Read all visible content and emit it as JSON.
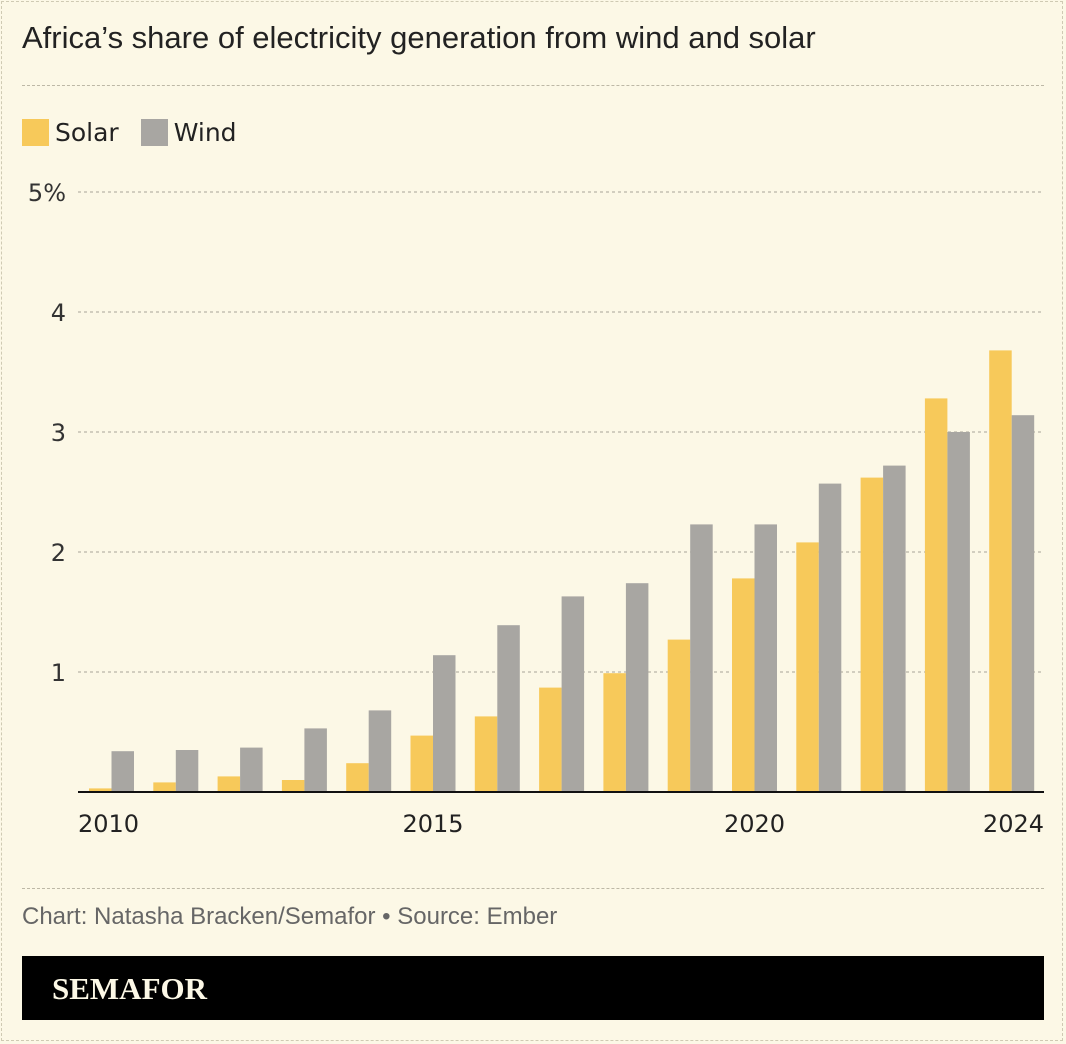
{
  "chart_data": {
    "type": "bar",
    "title": "Africa’s share of electricity generation from wind and solar",
    "categories": [
      2010,
      2011,
      2012,
      2013,
      2014,
      2015,
      2016,
      2017,
      2018,
      2019,
      2020,
      2021,
      2022,
      2023,
      2024
    ],
    "x_tick_labels": [
      "2010",
      "2015",
      "2020",
      "2024"
    ],
    "y_tick_labels": [
      "1",
      "2",
      "3",
      "4",
      "5%"
    ],
    "ylim": [
      0,
      5
    ],
    "grid": true,
    "legend_placement": "top-left",
    "series": [
      {
        "name": "Solar",
        "color": "#f7c95a",
        "values": [
          0.03,
          0.08,
          0.13,
          0.1,
          0.24,
          0.47,
          0.63,
          0.87,
          0.99,
          1.27,
          1.78,
          2.08,
          2.62,
          3.28,
          3.68
        ]
      },
      {
        "name": "Wind",
        "color": "#a8a6a2",
        "values": [
          0.34,
          0.35,
          0.37,
          0.53,
          0.68,
          1.14,
          1.39,
          1.63,
          1.74,
          2.23,
          2.23,
          2.57,
          2.72,
          3.0,
          3.14
        ]
      }
    ]
  },
  "footer": {
    "credit": "Chart: Natasha Bracken/Semafor • Source: Ember",
    "brand": "SEMAFOR"
  }
}
